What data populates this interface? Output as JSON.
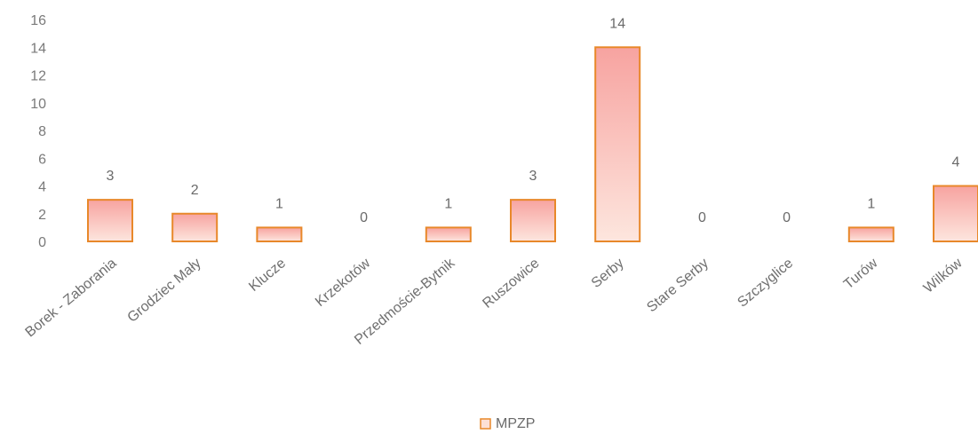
{
  "chart_data": {
    "type": "bar",
    "categories": [
      "Borek - Zaborania",
      "Grodziec Mały",
      "Klucze",
      "Krzekotów",
      "Przedmoście-Bytnik",
      "Ruszowice",
      "Serby",
      "Stare Serby",
      "Szczyglice",
      "Turów",
      "Wilków"
    ],
    "series": [
      {
        "name": "MPZP",
        "values": [
          3,
          2,
          1,
          0,
          1,
          3,
          14,
          0,
          0,
          1,
          4
        ]
      }
    ],
    "data_labels": [
      "3",
      "2",
      "1",
      "0",
      "1",
      "3",
      "14",
      "0",
      "0",
      "1",
      "4"
    ],
    "y_ticks": [
      "0",
      "2",
      "4",
      "6",
      "8",
      "10",
      "12",
      "14",
      "16"
    ],
    "ylim": [
      0,
      16
    ],
    "grid": false,
    "legend_position": "bottom",
    "colors": {
      "bar_stroke": "#e8882a",
      "bar_fill_top": "#f7a3a0",
      "bar_fill_bottom": "#fde6de"
    }
  }
}
